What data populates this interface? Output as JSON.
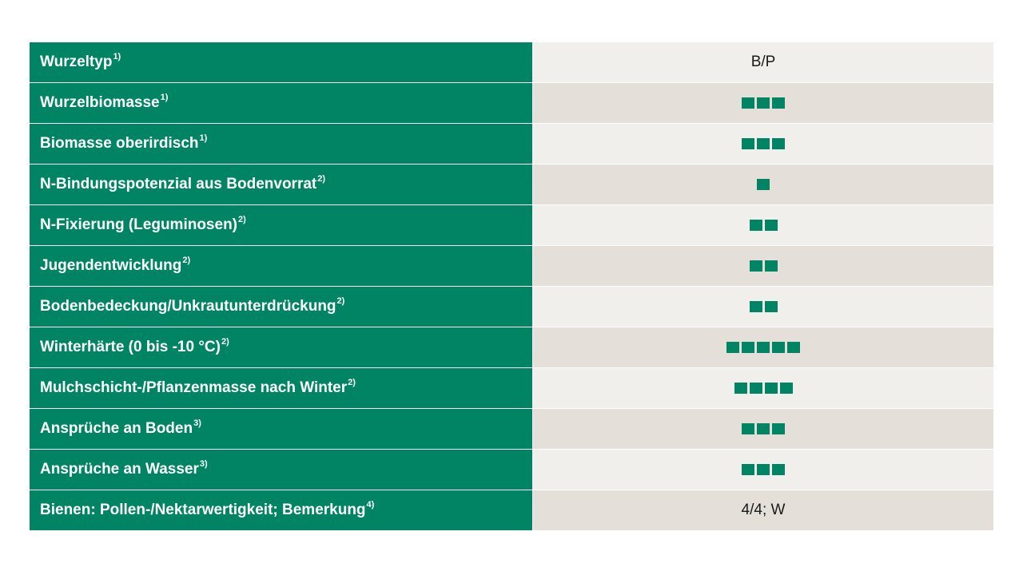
{
  "colors": {
    "accent": "#008463",
    "row_light": "#f1efeb",
    "row_dark": "#e4e0d9"
  },
  "rows": [
    {
      "label": "Wurzeltyp",
      "note": "1)",
      "kind": "text",
      "value": "B/P"
    },
    {
      "label": "Wurzelbiomasse",
      "note": "1)",
      "kind": "rating",
      "rating": 3
    },
    {
      "label": "Biomasse oberirdisch",
      "note": "1)",
      "kind": "rating",
      "rating": 3
    },
    {
      "label": "N-Bindungspotenzial aus Bodenvorrat",
      "note": "2)",
      "kind": "rating",
      "rating": 1
    },
    {
      "label": "N-Fixierung (Leguminosen)",
      "note": "2)",
      "kind": "rating",
      "rating": 2
    },
    {
      "label": "Jugendentwicklung",
      "note": "2)",
      "kind": "rating",
      "rating": 2
    },
    {
      "label": "Bodenbedeckung/Unkrautunterdrückung",
      "note": "2)",
      "kind": "rating",
      "rating": 2
    },
    {
      "label": "Winterhärte (0 bis -10 °C)",
      "note": "2)",
      "kind": "rating",
      "rating": 5
    },
    {
      "label": "Mulchschicht-/Pflanzenmasse nach Winter",
      "note": "2)",
      "kind": "rating",
      "rating": 4
    },
    {
      "label": "Ansprüche an Boden",
      "note": "3)",
      "kind": "rating",
      "rating": 3
    },
    {
      "label": "Ansprüche an Wasser",
      "note": "3)",
      "kind": "rating",
      "rating": 3
    },
    {
      "label": "Bienen: Pollen-/Nektarwertigkeit; Bemerkung",
      "note": "4)",
      "kind": "text",
      "value": "4/4; W"
    }
  ]
}
